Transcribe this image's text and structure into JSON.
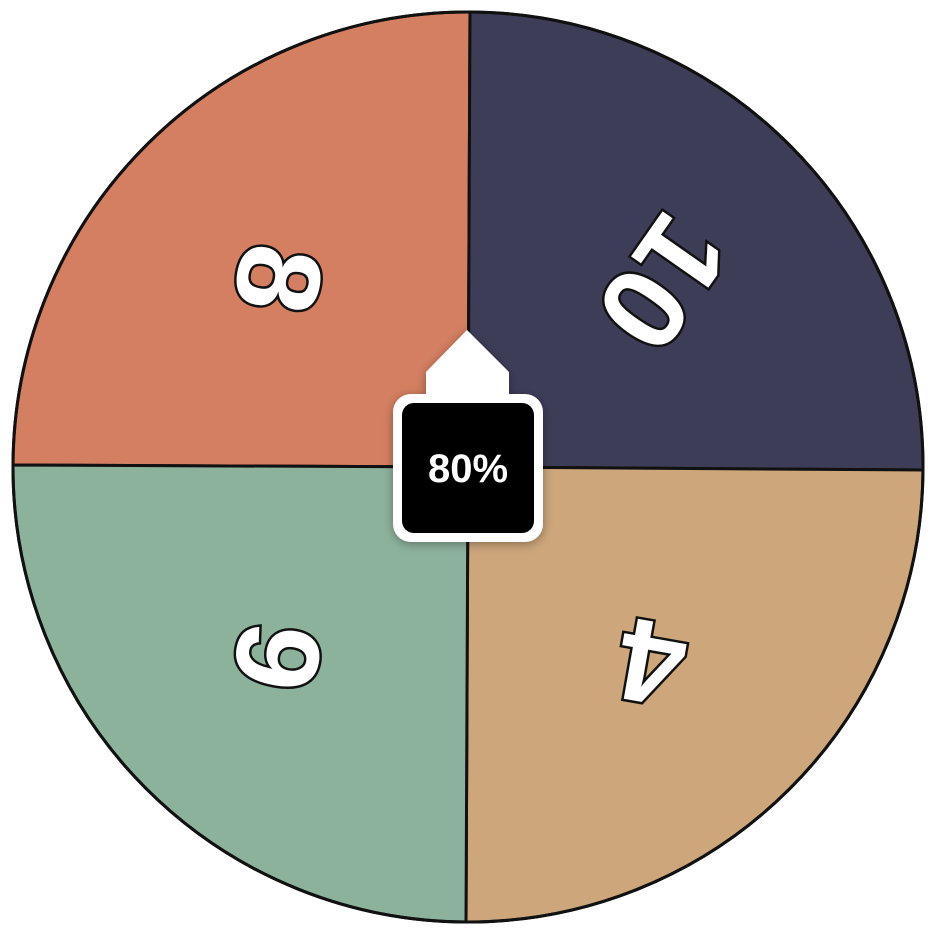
{
  "wheel": {
    "segments": [
      {
        "label": "8",
        "color": "#d47f62",
        "rotation_deg": 100
      },
      {
        "label": "10",
        "color": "#3e3d58",
        "rotation_deg": 125
      },
      {
        "label": "4",
        "color": "#cda67b",
        "rotation_deg": 190
      },
      {
        "label": "6",
        "color": "#8db29c",
        "rotation_deg": 280
      }
    ]
  },
  "pointer": {
    "label": "80%",
    "box_color": "#000000",
    "arrow_color": "#ffffff"
  }
}
